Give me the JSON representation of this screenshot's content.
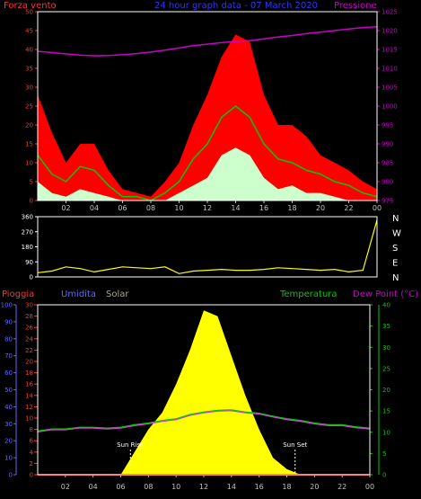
{
  "colors": {
    "wind_red": "#ff0000",
    "wind_green": "#00cc00",
    "wind_white": "#ccffcc",
    "pressure": "#cc00cc",
    "direction": "#ffff00",
    "rain": "#ff0000",
    "humidity": "#6666ff",
    "solar": "#ffff00",
    "temperature": "#00cc00",
    "dewpoint": "#cc44cc",
    "axis": "#c0c0c0",
    "frame": "#ffffff"
  },
  "chart_data": [
    {
      "type": "area",
      "title": "24 hour graph data - 07 March 2020",
      "left_axis_label": "Forza vento",
      "right_axis_label": "Pressione",
      "x_tick_labels": [
        "02",
        "04",
        "06",
        "08",
        "10",
        "12",
        "14",
        "16",
        "18",
        "20",
        "22",
        "00"
      ],
      "left_ylim": [
        0,
        50
      ],
      "left_ticks": [
        "0",
        "5",
        "10",
        "15",
        "20",
        "25",
        "30",
        "35",
        "40",
        "45",
        "50"
      ],
      "right_ylim": [
        975,
        1025
      ],
      "right_ticks": [
        "975",
        "980",
        "985",
        "990",
        "995",
        "1000",
        "1005",
        "1010",
        "1015",
        "1020",
        "1025"
      ],
      "hours": [
        0,
        1,
        2,
        3,
        4,
        5,
        6,
        7,
        8,
        9,
        10,
        11,
        12,
        13,
        14,
        15,
        16,
        17,
        18,
        19,
        20,
        21,
        22,
        23,
        24
      ],
      "series": [
        {
          "key": "gust",
          "values": [
            28,
            18,
            10,
            15,
            15,
            8,
            3,
            2,
            1,
            5,
            10,
            20,
            28,
            38,
            44,
            42,
            28,
            20,
            20,
            17,
            12,
            10,
            8,
            5,
            3
          ]
        },
        {
          "key": "avg",
          "values": [
            12,
            7,
            5,
            9,
            8,
            4,
            1,
            1,
            0,
            2,
            5,
            11,
            15,
            22,
            25,
            22,
            15,
            11,
            10,
            8,
            7,
            5,
            4,
            2,
            1
          ]
        },
        {
          "key": "min",
          "values": [
            5,
            2,
            1,
            3,
            2,
            1,
            0,
            0,
            0,
            0,
            2,
            4,
            6,
            12,
            14,
            12,
            6,
            3,
            4,
            2,
            2,
            1,
            0,
            0,
            0
          ]
        },
        {
          "key": "pressure",
          "values": [
            1014.5,
            1014.2,
            1013.8,
            1013.5,
            1013.3,
            1013.4,
            1013.6,
            1013.9,
            1014.3,
            1014.8,
            1015.4,
            1016.0,
            1016.4,
            1016.8,
            1017.1,
            1017.3,
            1017.8,
            1018.3,
            1018.7,
            1019.2,
            1019.6,
            1020.0,
            1020.4,
            1020.8,
            1021.0
          ]
        }
      ]
    },
    {
      "type": "line",
      "y_ticks": [
        "0",
        "90",
        "180",
        "270",
        "360"
      ],
      "ylim": [
        0,
        360
      ],
      "compass_labels": [
        "N",
        "W",
        "S",
        "E",
        "N"
      ],
      "x_tick_labels": [
        "02",
        "04",
        "06",
        "08",
        "10",
        "12",
        "14",
        "16",
        "18",
        "20",
        "22",
        "00"
      ],
      "hours": [
        0,
        1,
        2,
        3,
        4,
        5,
        6,
        7,
        8,
        9,
        10,
        11,
        12,
        13,
        14,
        15,
        16,
        17,
        18,
        19,
        20,
        21,
        22,
        23,
        24
      ],
      "series": [
        {
          "key": "direction",
          "values": [
            25,
            35,
            60,
            50,
            30,
            45,
            60,
            55,
            50,
            60,
            20,
            35,
            40,
            45,
            40,
            40,
            45,
            55,
            50,
            45,
            40,
            45,
            30,
            40,
            340
          ]
        }
      ]
    },
    {
      "type": "area",
      "legend": [
        "Pioggia",
        "Umidita",
        "Solar",
        "Temperatura",
        "Dew Point (°C)"
      ],
      "x_tick_labels": [
        "02",
        "04",
        "06",
        "08",
        "10",
        "12",
        "14",
        "16",
        "18",
        "20",
        "22",
        "00"
      ],
      "humidity_ticks": [
        "0",
        "10",
        "20",
        "30",
        "40",
        "50",
        "60",
        "70",
        "80",
        "90",
        "100"
      ],
      "humidity_ylim": [
        0,
        100
      ],
      "rain_ticks": [
        "0",
        "2",
        "4",
        "6",
        "8",
        "10",
        "12",
        "14",
        "16",
        "18",
        "20",
        "22",
        "24",
        "26",
        "28",
        "30"
      ],
      "rain_ylim": [
        0,
        30
      ],
      "temp_ticks": [
        "0",
        "5",
        "10",
        "15",
        "20",
        "25",
        "30",
        "35",
        "40"
      ],
      "temp_ylim": [
        0,
        40
      ],
      "annotations": [
        {
          "text": "Sun Rise",
          "hour": 6.7
        },
        {
          "text": "Sun Set",
          "hour": 18.6
        }
      ],
      "hours": [
        0,
        1,
        2,
        3,
        4,
        5,
        6,
        7,
        8,
        9,
        10,
        11,
        12,
        13,
        14,
        15,
        16,
        17,
        18,
        19,
        20,
        21,
        22,
        23,
        24
      ],
      "series": [
        {
          "key": "rain",
          "values": [
            0,
            0,
            0,
            0,
            0,
            0,
            0,
            0,
            0,
            0,
            0,
            0,
            0,
            0,
            0,
            0,
            0,
            0,
            0,
            0,
            0,
            0,
            0,
            0,
            0
          ]
        },
        {
          "key": "solar",
          "values": [
            0,
            0,
            0,
            0,
            0,
            0,
            0,
            4,
            8,
            11,
            16,
            22,
            29,
            28,
            21,
            14,
            8,
            3,
            1,
            0,
            0,
            0,
            0,
            0,
            0
          ]
        },
        {
          "key": "temperature",
          "values": [
            10.3,
            10.8,
            10.8,
            11.2,
            11.2,
            11.0,
            11.2,
            11.8,
            12.2,
            12.8,
            13.2,
            14.2,
            14.8,
            15.2,
            15.3,
            14.8,
            14.5,
            13.8,
            13.2,
            12.8,
            12.2,
            11.8,
            11.8,
            11.3,
            11.0
          ]
        },
        {
          "key": "dewpoint",
          "values": [
            10.1,
            10.6,
            10.6,
            11.0,
            11.0,
            10.8,
            11.0,
            11.6,
            12.0,
            12.6,
            13.0,
            14.0,
            14.6,
            15.0,
            15.1,
            14.6,
            14.3,
            13.6,
            13.0,
            12.6,
            12.0,
            11.6,
            11.6,
            11.1,
            10.8
          ]
        }
      ]
    }
  ]
}
